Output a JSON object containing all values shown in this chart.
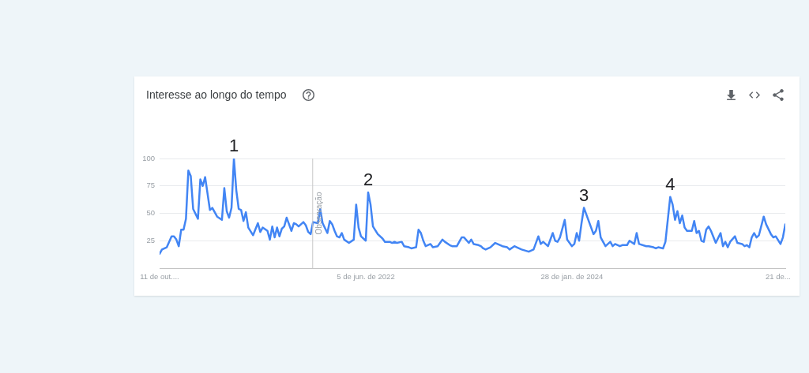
{
  "chart_data": {
    "type": "line",
    "title": "Interesse ao longo do tempo",
    "x": [
      "2020-10-11",
      "2020-10-18",
      "2020-11-01",
      "2020-11-15",
      "2020-11-22",
      "2020-11-29",
      "2020-12-06",
      "2020-12-13",
      "2020-12-20",
      "2020-12-27",
      "2021-01-03",
      "2021-01-10",
      "2021-01-17",
      "2021-01-31",
      "2021-02-07",
      "2021-02-14",
      "2021-02-21",
      "2021-03-07",
      "2021-03-14",
      "2021-03-28",
      "2021-04-11",
      "2021-04-18",
      "2021-04-25",
      "2021-05-02",
      "2021-05-09",
      "2021-05-16",
      "2021-05-23",
      "2021-05-30",
      "2021-06-06",
      "2021-06-13",
      "2021-06-20",
      "2021-06-27",
      "2021-07-11",
      "2021-07-25",
      "2021-08-01",
      "2021-08-08",
      "2021-08-22",
      "2021-08-29",
      "2021-09-05",
      "2021-09-12",
      "2021-09-19",
      "2021-09-26",
      "2021-10-03",
      "2021-10-10",
      "2021-10-17",
      "2021-10-24",
      "2021-10-31",
      "2021-11-07",
      "2021-11-14",
      "2021-11-21",
      "2021-12-05",
      "2021-12-12",
      "2021-12-19",
      "2021-12-26",
      "2022-01-02",
      "2022-01-16",
      "2022-01-23",
      "2022-01-30",
      "2022-02-13",
      "2022-02-20",
      "2022-02-27",
      "2022-03-06",
      "2022-03-13",
      "2022-03-20",
      "2022-03-27",
      "2022-04-03",
      "2022-04-17",
      "2022-05-01",
      "2022-05-08",
      "2022-05-15",
      "2022-05-22",
      "2022-06-05",
      "2022-06-12",
      "2022-06-19",
      "2022-06-26",
      "2022-07-10",
      "2022-07-24",
      "2022-07-31",
      "2022-08-14",
      "2022-08-21",
      "2022-08-28",
      "2022-09-04",
      "2022-09-18",
      "2022-09-25",
      "2022-10-09",
      "2022-10-16",
      "2022-10-30",
      "2022-11-06",
      "2022-11-13",
      "2022-11-20",
      "2022-11-27",
      "2022-12-11",
      "2022-12-18",
      "2023-01-01",
      "2023-01-15",
      "2023-01-22",
      "2023-02-05",
      "2023-02-12",
      "2023-02-26",
      "2023-03-12",
      "2023-03-19",
      "2023-04-02",
      "2023-04-09",
      "2023-04-16",
      "2023-04-30",
      "2023-05-07",
      "2023-05-14",
      "2023-05-21",
      "2023-06-04",
      "2023-06-18",
      "2023-07-09",
      "2023-07-23",
      "2023-07-30",
      "2023-08-13",
      "2023-08-20",
      "2023-09-03",
      "2023-09-24",
      "2023-10-08",
      "2023-10-22",
      "2023-10-29",
      "2023-11-05",
      "2023-11-19",
      "2023-12-03",
      "2023-12-10",
      "2023-12-17",
      "2023-12-24",
      "2024-01-07",
      "2024-01-14",
      "2024-01-28",
      "2024-02-04",
      "2024-02-11",
      "2024-02-18",
      "2024-02-25",
      "2024-03-03",
      "2024-03-10",
      "2024-03-31",
      "2024-04-07",
      "2024-04-14",
      "2024-04-21",
      "2024-05-05",
      "2024-05-19",
      "2024-05-26",
      "2024-06-02",
      "2024-06-16",
      "2024-06-23",
      "2024-07-07",
      "2024-07-14",
      "2024-07-28",
      "2024-08-04",
      "2024-08-11",
      "2024-09-01",
      "2024-09-08",
      "2024-09-22",
      "2024-09-29",
      "2024-10-06",
      "2024-10-20",
      "2024-10-27",
      "2024-11-10",
      "2024-11-17",
      "2024-11-24",
      "2024-12-01",
      "2024-12-08",
      "2024-12-15",
      "2024-12-22",
      "2024-12-29",
      "2025-01-12",
      "2025-01-19",
      "2025-01-26",
      "2025-02-02",
      "2025-02-09",
      "2025-02-16",
      "2025-02-23",
      "2025-03-02",
      "2025-03-09",
      "2025-03-23",
      "2025-04-06",
      "2025-04-13",
      "2025-04-20",
      "2025-04-27",
      "2025-05-04",
      "2025-05-18",
      "2025-05-25",
      "2025-06-08",
      "2025-06-15",
      "2025-06-22",
      "2025-06-29",
      "2025-07-06",
      "2025-07-13",
      "2025-07-20",
      "2025-07-27",
      "2025-08-10",
      "2025-08-17",
      "2025-08-31",
      "2025-09-07",
      "2025-09-14",
      "2025-09-28",
      "2025-10-05",
      "2025-10-12"
    ],
    "values": [
      13,
      17,
      19,
      29,
      29,
      26,
      20,
      35,
      35,
      45,
      89,
      84,
      54,
      45,
      81,
      75,
      83,
      53,
      55,
      47,
      44,
      73,
      52,
      46,
      55,
      100,
      71,
      54,
      53,
      43,
      51,
      37,
      30,
      41,
      33,
      37,
      34,
      26,
      38,
      28,
      37,
      29,
      36,
      38,
      46,
      40,
      34,
      41,
      40,
      38,
      42,
      39,
      33,
      31,
      42,
      41,
      54,
      41,
      32,
      43,
      40,
      34,
      29,
      28,
      32,
      26,
      23,
      26,
      58,
      37,
      29,
      25,
      69,
      58,
      38,
      31,
      27,
      24,
      24,
      23,
      24,
      23,
      24,
      20,
      19,
      18,
      19,
      35,
      32,
      25,
      20,
      22,
      19,
      20,
      26,
      24,
      21,
      20,
      20,
      28,
      28,
      23,
      26,
      22,
      21,
      20,
      18,
      17,
      19,
      23,
      20,
      19,
      17,
      20,
      19,
      17,
      15,
      17,
      29,
      22,
      24,
      20,
      32,
      25,
      24,
      28,
      44,
      26,
      20,
      22,
      32,
      25,
      41,
      55,
      49,
      31,
      34,
      43,
      28,
      20,
      24,
      20,
      22,
      20,
      21,
      21,
      25,
      22,
      32,
      22,
      20,
      20,
      19,
      18,
      19,
      18,
      24,
      65,
      58,
      44,
      52,
      41,
      48,
      37,
      34,
      34,
      43,
      32,
      34,
      25,
      24,
      35,
      38,
      34,
      23,
      32,
      20,
      24,
      19,
      24,
      29,
      23,
      22,
      20,
      21,
      19,
      28,
      32,
      28,
      30,
      47,
      40,
      31,
      28,
      29,
      22,
      28,
      40
    ],
    "color": "#4285f4",
    "xlim": [
      "2020-10-11",
      "2025-10-12"
    ],
    "xticks": [
      {
        "value": "2020-10-11",
        "label": "11 de out...."
      },
      {
        "value": "2022-06-05",
        "label": "5 de jun. de 2022"
      },
      {
        "value": "2024-01-28",
        "label": "28 de jan. de 2024"
      },
      {
        "value": "2025-09-21",
        "label": "21 de..."
      }
    ],
    "ylim": [
      0,
      100
    ],
    "yticks": [
      25,
      50,
      75,
      100
    ],
    "grid": "y",
    "ref_lines": [
      {
        "axis": "x",
        "value": "2022-01-01",
        "label": "Observação",
        "color": "#c8c8c8"
      }
    ],
    "annotations": [
      {
        "text": "1",
        "x": "2021-05-16",
        "y": 100
      },
      {
        "text": "2",
        "x": "2022-06-12",
        "y": 69
      },
      {
        "text": "3",
        "x": "2024-03-03",
        "y": 55
      },
      {
        "text": "4",
        "x": "2024-11-10",
        "y": 65
      }
    ]
  }
}
